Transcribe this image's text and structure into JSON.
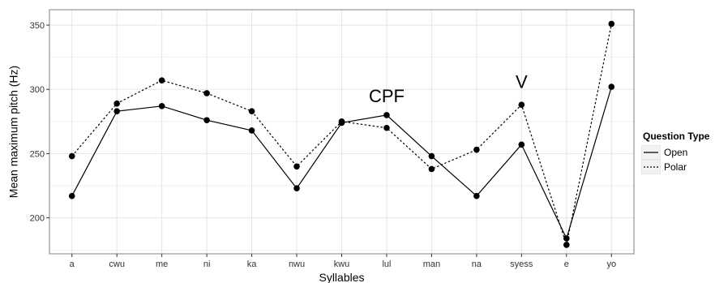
{
  "chart_data": {
    "type": "line",
    "xlabel": "Syllables",
    "ylabel": "Mean maximum pitch (Hz)",
    "categories": [
      "a",
      "cwu",
      "me",
      "ni",
      "ka",
      "nwu",
      "kwu",
      "lul",
      "man",
      "na",
      "syess",
      "e",
      "yo"
    ],
    "ylim": [
      172,
      362
    ],
    "yticks": [
      200,
      250,
      300,
      350
    ],
    "grid": true,
    "legend_position": "right",
    "legend_title": "Question Type",
    "series": [
      {
        "name": "Open",
        "line_style": "solid",
        "values": [
          217,
          283,
          287,
          276,
          268,
          223,
          274,
          280,
          248,
          217,
          257,
          184,
          302
        ]
      },
      {
        "name": "Polar",
        "line_style": "dotted",
        "values": [
          248,
          289,
          307,
          297,
          283,
          240,
          275,
          270,
          238,
          253,
          288,
          179,
          351
        ]
      }
    ],
    "annotations": [
      {
        "text": "CPF",
        "category": "lul",
        "y": 290
      },
      {
        "text": "V",
        "category": "syess",
        "y": 301
      }
    ],
    "colors": {
      "panel": "#ffffff",
      "grid": "#e5e5e5",
      "border": "#808080",
      "line": "#000000"
    }
  }
}
